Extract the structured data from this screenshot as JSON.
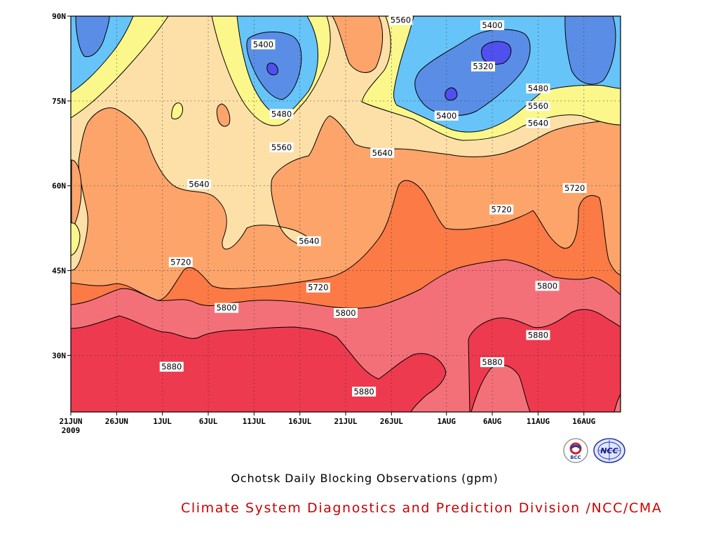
{
  "chart_data": {
    "type": "contour",
    "title": "Ochotsk Daily Blocking Observations (gpm)",
    "xlabel": "",
    "ylabel": "",
    "x_ticks": [
      {
        "date": "2009-06-21",
        "label": "21JUN",
        "sublabel": "2009"
      },
      {
        "date": "2009-06-26",
        "label": "26JUN"
      },
      {
        "date": "2009-07-01",
        "label": "1JUL"
      },
      {
        "date": "2009-07-06",
        "label": "6JUL"
      },
      {
        "date": "2009-07-11",
        "label": "11JUL"
      },
      {
        "date": "2009-07-16",
        "label": "16JUL"
      },
      {
        "date": "2009-07-21",
        "label": "21JUL"
      },
      {
        "date": "2009-07-26",
        "label": "26JUL"
      },
      {
        "date": "2009-08-01",
        "label": "1AUG"
      },
      {
        "date": "2009-08-06",
        "label": "6AUG"
      },
      {
        "date": "2009-08-11",
        "label": "11AUG"
      },
      {
        "date": "2009-08-16",
        "label": "16AUG"
      }
    ],
    "xlim": [
      "2009-06-21",
      "2009-08-20"
    ],
    "y_ticks": [
      {
        "value": 30,
        "label": "30N"
      },
      {
        "value": 45,
        "label": "45N"
      },
      {
        "value": 60,
        "label": "60N"
      },
      {
        "value": 75,
        "label": "75N"
      },
      {
        "value": 90,
        "label": "90N"
      }
    ],
    "ylim": [
      20,
      90
    ],
    "grid": true,
    "contour_levels": [
      5320,
      5400,
      5480,
      5560,
      5640,
      5720,
      5800,
      5880
    ],
    "fill_colors": {
      "below_5320": "#5050ee",
      "5320_5400": "#5a8ee6",
      "5400_5480": "#66c4f8",
      "5480_5560": "#fbf78a",
      "5560_5640": "#fde0a8",
      "5640_5720": "#fca46a",
      "5720_5800": "#fb7a45",
      "5800_5880": "#f47079",
      "above_5880": "#ee3a4e"
    },
    "contour_labels": [
      {
        "text": "5560",
        "date": "2009-07-27",
        "lat": 89.3
      },
      {
        "text": "5400",
        "date": "2009-08-06",
        "lat": 88.4
      },
      {
        "text": "5400",
        "date": "2009-07-12",
        "lat": 85.0
      },
      {
        "text": "5320",
        "date": "2009-08-05",
        "lat": 81.1
      },
      {
        "text": "5480",
        "date": "2009-08-11",
        "lat": 77.2
      },
      {
        "text": "5560",
        "date": "2009-08-11",
        "lat": 74.1
      },
      {
        "text": "5480",
        "date": "2009-07-14",
        "lat": 72.7
      },
      {
        "text": "5400",
        "date": "2009-08-01",
        "lat": 72.4
      },
      {
        "text": "5640",
        "date": "2009-08-11",
        "lat": 71.1
      },
      {
        "text": "5560",
        "date": "2009-07-14",
        "lat": 66.8
      },
      {
        "text": "5640",
        "date": "2009-07-25",
        "lat": 65.8
      },
      {
        "text": "5640",
        "date": "2009-07-05",
        "lat": 60.3
      },
      {
        "text": "5720",
        "date": "2009-08-15",
        "lat": 59.6
      },
      {
        "text": "5720",
        "date": "2009-08-07",
        "lat": 55.8
      },
      {
        "text": "5640",
        "date": "2009-07-17",
        "lat": 50.2
      },
      {
        "text": "5720",
        "date": "2009-07-03",
        "lat": 46.5
      },
      {
        "text": "5720",
        "date": "2009-07-18",
        "lat": 42.0
      },
      {
        "text": "5800",
        "date": "2009-08-12",
        "lat": 42.3
      },
      {
        "text": "5800",
        "date": "2009-07-08",
        "lat": 38.4
      },
      {
        "text": "5800",
        "date": "2009-07-21",
        "lat": 37.5
      },
      {
        "text": "5880",
        "date": "2009-08-11",
        "lat": 33.6
      },
      {
        "text": "5880",
        "date": "2009-08-06",
        "lat": 28.8
      },
      {
        "text": "5880",
        "date": "2009-07-02",
        "lat": 28.0
      },
      {
        "text": "5880",
        "date": "2009-07-23",
        "lat": 23.6
      }
    ]
  },
  "footer": {
    "credit": "Climate System Diagnostics and Prediction Division /NCC/CMA",
    "logo_left_text": "BCC",
    "logo_right_text": "NCC"
  }
}
